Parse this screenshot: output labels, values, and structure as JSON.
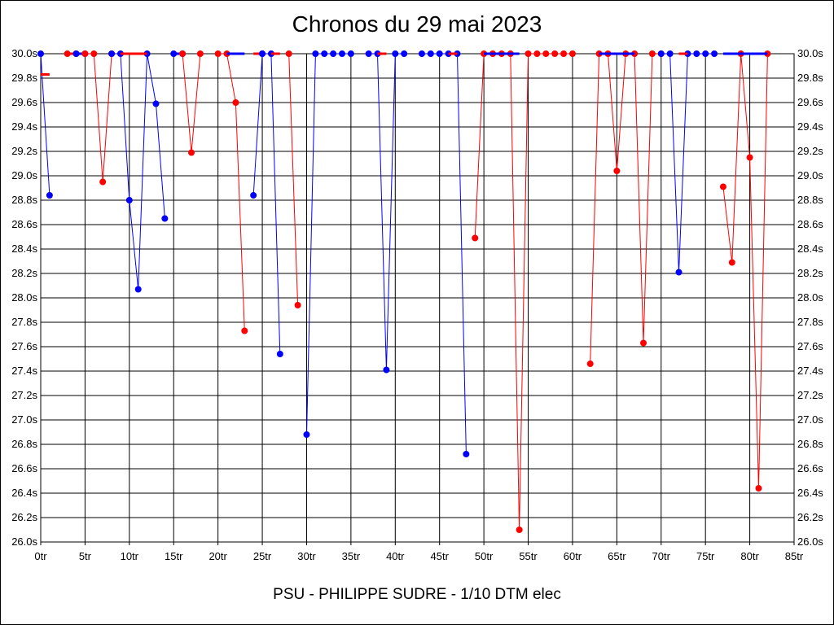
{
  "chart_data": {
    "type": "line",
    "title": "Chronos du 29 mai 2023",
    "footer": "PSU - PHILIPPE SUDRE - 1/10 DTM elec",
    "xlabel": "",
    "ylabel": "",
    "xlim": [
      0,
      85
    ],
    "ylim": [
      26.0,
      30.0
    ],
    "x_ticks": [
      "0tr",
      "5tr",
      "10tr",
      "15tr",
      "20tr",
      "25tr",
      "30tr",
      "35tr",
      "40tr",
      "45tr",
      "50tr",
      "55tr",
      "60tr",
      "65tr",
      "70tr",
      "75tr",
      "80tr",
      "85tr"
    ],
    "y_ticks": [
      "26.0s",
      "26.2s",
      "26.4s",
      "26.6s",
      "26.8s",
      "27.0s",
      "27.2s",
      "27.4s",
      "27.6s",
      "27.8s",
      "28.0s",
      "28.2s",
      "28.4s",
      "28.6s",
      "28.8s",
      "29.0s",
      "29.2s",
      "29.4s",
      "29.6s",
      "29.8s",
      "30.0s"
    ],
    "grid": true,
    "colors": {
      "blue": "#0000ff",
      "red": "#ff0000"
    },
    "segments": [
      {
        "color": "blue",
        "points": [
          [
            0,
            30.0
          ],
          [
            1,
            28.84
          ]
        ]
      },
      {
        "color": "red",
        "points": [
          [
            0,
            29.83
          ],
          [
            1,
            29.83
          ]
        ],
        "marker": false
      },
      {
        "color": "red",
        "points": [
          [
            3,
            30.0
          ],
          [
            4,
            30.0
          ]
        ]
      },
      {
        "color": "blue",
        "points": [
          [
            4,
            30.0
          ],
          [
            5,
            30.0
          ]
        ]
      },
      {
        "color": "red",
        "points": [
          [
            5,
            30.0
          ],
          [
            6,
            30.0
          ],
          [
            7,
            28.95
          ],
          [
            8,
            30.0
          ]
        ]
      },
      {
        "color": "blue",
        "points": [
          [
            8,
            30.0
          ],
          [
            9,
            30.0
          ],
          [
            10,
            28.8
          ],
          [
            11,
            28.07
          ],
          [
            12,
            30.0
          ],
          [
            13,
            29.59
          ],
          [
            14,
            28.65
          ]
        ]
      },
      {
        "color": "red",
        "points": [
          [
            9,
            30.0
          ],
          [
            12,
            30.0
          ]
        ],
        "marker": false
      },
      {
        "color": "blue",
        "points": [
          [
            15,
            30.0
          ],
          [
            16,
            30.0
          ]
        ]
      },
      {
        "color": "red",
        "points": [
          [
            16,
            30.0
          ],
          [
            17,
            29.19
          ],
          [
            18,
            30.0
          ]
        ]
      },
      {
        "color": "red",
        "points": [
          [
            20,
            30.0
          ],
          [
            21,
            30.0
          ],
          [
            22,
            29.6
          ],
          [
            23,
            27.73
          ]
        ]
      },
      {
        "color": "blue",
        "points": [
          [
            21,
            30.0
          ],
          [
            23,
            30.0
          ]
        ],
        "marker": false
      },
      {
        "color": "blue",
        "points": [
          [
            24,
            28.84
          ],
          [
            25,
            30.0
          ]
        ]
      },
      {
        "color": "red",
        "points": [
          [
            24,
            30.0
          ],
          [
            25,
            30.0
          ]
        ],
        "marker": false
      },
      {
        "color": "blue",
        "points": [
          [
            25,
            30.0
          ],
          [
            26,
            30.0
          ],
          [
            27,
            27.54
          ]
        ]
      },
      {
        "color": "red",
        "points": [
          [
            26,
            30.0
          ],
          [
            27,
            30.0
          ]
        ],
        "marker": false
      },
      {
        "color": "red",
        "points": [
          [
            28,
            30.0
          ],
          [
            29,
            27.94
          ]
        ]
      },
      {
        "color": "blue",
        "points": [
          [
            30,
            26.88
          ],
          [
            31,
            30.0
          ],
          [
            32,
            30.0
          ],
          [
            33,
            30.0
          ],
          [
            34,
            30.0
          ],
          [
            35,
            30.0
          ]
        ]
      },
      {
        "color": "blue",
        "points": [
          [
            37,
            30.0
          ],
          [
            38,
            30.0
          ],
          [
            39,
            27.41
          ],
          [
            40,
            30.0
          ],
          [
            41,
            30.0
          ]
        ]
      },
      {
        "color": "red",
        "points": [
          [
            38,
            30.0
          ],
          [
            39,
            30.0
          ]
        ],
        "marker": false
      },
      {
        "color": "blue",
        "points": [
          [
            43,
            30.0
          ],
          [
            44,
            30.0
          ],
          [
            45,
            30.0
          ],
          [
            46,
            30.0
          ],
          [
            47,
            30.0
          ],
          [
            48,
            26.72
          ]
        ]
      },
      {
        "color": "red",
        "points": [
          [
            46,
            30.0
          ],
          [
            47,
            30.0
          ]
        ],
        "marker": false
      },
      {
        "color": "red",
        "points": [
          [
            49,
            28.49
          ],
          [
            50,
            30.0
          ],
          [
            51,
            30.0
          ],
          [
            52,
            30.0
          ],
          [
            53,
            30.0
          ],
          [
            54,
            26.1
          ],
          [
            55,
            30.0
          ],
          [
            56,
            30.0
          ],
          [
            57,
            30.0
          ],
          [
            58,
            30.0
          ],
          [
            59,
            30.0
          ],
          [
            60,
            30.0
          ]
        ]
      },
      {
        "color": "blue",
        "points": [
          [
            50,
            30.0
          ],
          [
            54,
            30.0
          ]
        ],
        "marker": false
      },
      {
        "color": "red",
        "points": [
          [
            62,
            27.46
          ],
          [
            63,
            30.0
          ],
          [
            64,
            30.0
          ],
          [
            65,
            29.04
          ],
          [
            66,
            30.0
          ],
          [
            67,
            30.0
          ],
          [
            68,
            27.63
          ],
          [
            69,
            30.0
          ],
          [
            70,
            30.0
          ]
        ]
      },
      {
        "color": "blue",
        "points": [
          [
            63,
            30.0
          ],
          [
            67,
            30.0
          ]
        ],
        "marker": false
      },
      {
        "color": "blue",
        "points": [
          [
            70,
            30.0
          ],
          [
            71,
            30.0
          ],
          [
            72,
            28.21
          ],
          [
            73,
            30.0
          ],
          [
            74,
            30.0
          ],
          [
            75,
            30.0
          ],
          [
            76,
            30.0
          ]
        ]
      },
      {
        "color": "red",
        "points": [
          [
            72,
            30.0
          ],
          [
            73,
            30.0
          ]
        ],
        "marker": false
      },
      {
        "color": "red",
        "points": [
          [
            77,
            28.91
          ],
          [
            78,
            28.29
          ],
          [
            79,
            30.0
          ],
          [
            80,
            29.15
          ],
          [
            81,
            26.44
          ],
          [
            82,
            30.0
          ]
        ]
      },
      {
        "color": "blue",
        "points": [
          [
            77,
            30.0
          ],
          [
            82,
            30.0
          ]
        ],
        "marker": false
      }
    ]
  }
}
